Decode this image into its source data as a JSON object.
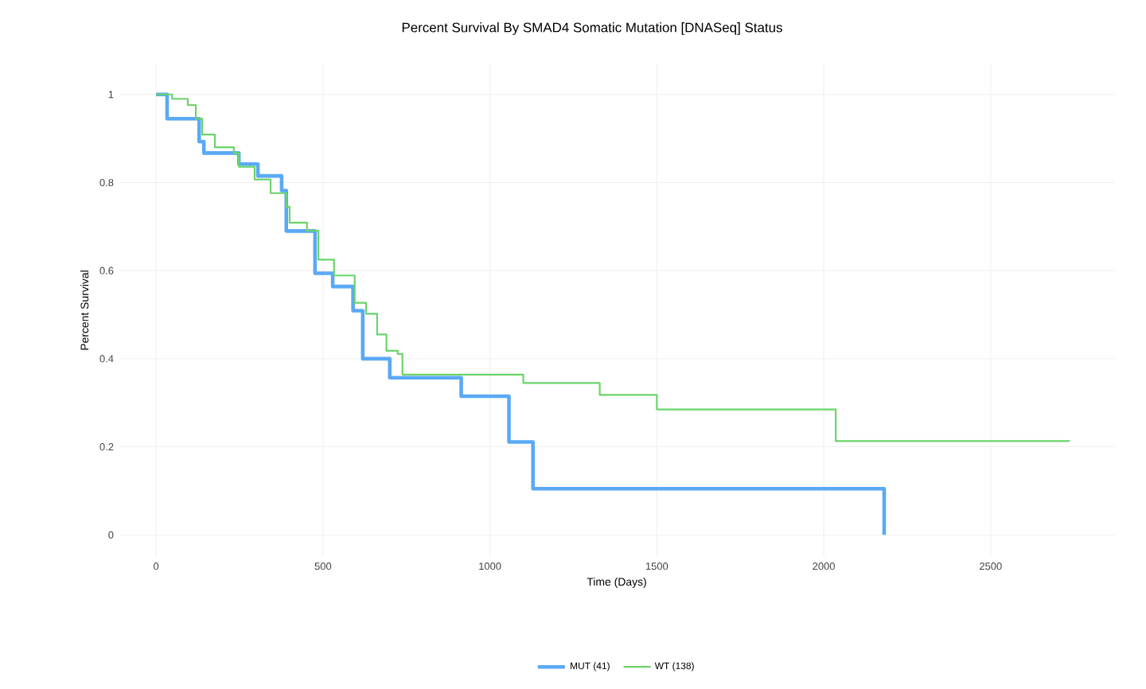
{
  "chart_data": {
    "type": "step",
    "title": "Percent Survival By SMAD4 Somatic Mutation [DNASeq] Status",
    "xlabel": "Time (Days)",
    "ylabel": "Percent Survival",
    "xlim": [
      -110,
      2870
    ],
    "ylim": [
      -0.05,
      1.07
    ],
    "xticks": [
      0,
      500,
      1000,
      1500,
      2000,
      2500
    ],
    "yticks": [
      0,
      0.2,
      0.4,
      0.6,
      0.8,
      1
    ],
    "grid": true,
    "legend": "bottom",
    "series": [
      {
        "name": "MUT (41)",
        "color": "#5aa9f5",
        "x": [
          0,
          33,
          129,
          143,
          248,
          305,
          376,
          390,
          476,
          529,
          590,
          619,
          700,
          914,
          1057,
          1129,
          2181
        ],
        "values": [
          1,
          0.945,
          0.893,
          0.867,
          0.842,
          0.815,
          0.782,
          0.69,
          0.594,
          0.564,
          0.509,
          0.4,
          0.357,
          0.315,
          0.211,
          0.105,
          0
        ]
      },
      {
        "name": "WT (138)",
        "color": "#6ad46a",
        "x": [
          0,
          48,
          95,
          119,
          138,
          176,
          233,
          248,
          295,
          343,
          390,
          400,
          452,
          486,
          533,
          595,
          629,
          662,
          690,
          724,
          738,
          1100,
          1329,
          1500,
          2036,
          2737
        ],
        "values": [
          1,
          0.99,
          0.976,
          0.945,
          0.909,
          0.88,
          0.867,
          0.836,
          0.807,
          0.776,
          0.745,
          0.709,
          0.691,
          0.625,
          0.589,
          0.527,
          0.502,
          0.455,
          0.418,
          0.411,
          0.364,
          0.345,
          0.318,
          0.285,
          0.213,
          0.213
        ]
      }
    ]
  }
}
